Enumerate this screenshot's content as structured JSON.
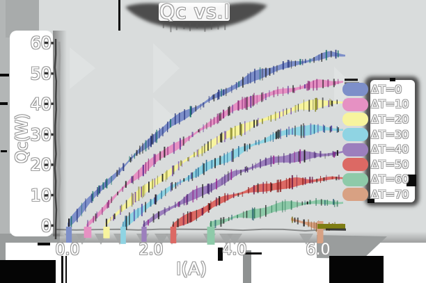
{
  "style": {
    "background": "#d9dcdc",
    "label_text_color": "#ffffff",
    "label_outline_color": "#9b9b9b",
    "shadow_color": "#4e4e4e"
  },
  "chart_data": {
    "type": "line",
    "title": "Qc vs.I",
    "xlabel": "I(A)",
    "ylabel": "Qc(W)",
    "x_ticks": [
      "0.0",
      "2.0",
      "4.0",
      "6.0"
    ],
    "x_tick_values": [
      0,
      2,
      4,
      6
    ],
    "y_ticks": [
      "0",
      "10",
      "20",
      "30",
      "40",
      "50",
      "60"
    ],
    "y_tick_values": [
      0,
      10,
      20,
      30,
      40,
      50,
      60
    ],
    "xlim": [
      -0.3,
      6.7
    ],
    "ylim": [
      0,
      62
    ],
    "grid": false,
    "legend_position": "right",
    "series": [
      {
        "name": "ΔT=0",
        "color": "#7d8fc9",
        "points": [
          [
            0,
            0
          ],
          [
            0.5,
            8
          ],
          [
            1,
            15
          ],
          [
            1.5,
            22
          ],
          [
            2,
            28
          ],
          [
            2.5,
            33.5
          ],
          [
            3,
            38
          ],
          [
            3.5,
            42.5
          ],
          [
            4,
            46
          ],
          [
            4.5,
            49
          ],
          [
            5,
            51.5
          ],
          [
            5.5,
            53.5
          ],
          [
            6,
            55.5
          ],
          [
            6.3,
            56.5
          ],
          [
            6.65,
            56
          ]
        ]
      },
      {
        "name": "ΔT=10",
        "color": "#e691c3",
        "points": [
          [
            0.45,
            0
          ],
          [
            1,
            8
          ],
          [
            1.5,
            14.5
          ],
          [
            2,
            20.5
          ],
          [
            2.5,
            25.5
          ],
          [
            3,
            30
          ],
          [
            3.5,
            34.5
          ],
          [
            4,
            38.5
          ],
          [
            4.5,
            41.5
          ],
          [
            5,
            44
          ],
          [
            5.5,
            45.5
          ],
          [
            6,
            46.5
          ],
          [
            6.6,
            47
          ]
        ]
      },
      {
        "name": "ΔT=20",
        "color": "#f7f49e",
        "points": [
          [
            0.9,
            0
          ],
          [
            1.5,
            8
          ],
          [
            2,
            13.5
          ],
          [
            2.5,
            18.5
          ],
          [
            3,
            23
          ],
          [
            3.5,
            27
          ],
          [
            4,
            31
          ],
          [
            4.5,
            34
          ],
          [
            5,
            36.5
          ],
          [
            5.5,
            38.5
          ],
          [
            6,
            40
          ],
          [
            6.6,
            40.5
          ]
        ]
      },
      {
        "name": "ΔT=30",
        "color": "#8fd4e3",
        "points": [
          [
            1.3,
            0
          ],
          [
            2,
            8
          ],
          [
            2.5,
            12.5
          ],
          [
            3,
            16.5
          ],
          [
            3.5,
            20.5
          ],
          [
            4,
            24
          ],
          [
            4.5,
            27
          ],
          [
            5,
            29.5
          ],
          [
            5.5,
            31
          ],
          [
            6,
            32
          ],
          [
            6.6,
            32
          ]
        ]
      },
      {
        "name": "ΔT=40",
        "color": "#9c7fbd",
        "points": [
          [
            1.8,
            0
          ],
          [
            2.5,
            6
          ],
          [
            3,
            10
          ],
          [
            3.5,
            13.5
          ],
          [
            4,
            17
          ],
          [
            4.5,
            19.5
          ],
          [
            5,
            21.5
          ],
          [
            5.5,
            23
          ],
          [
            6,
            23.5
          ],
          [
            6.6,
            24
          ]
        ]
      },
      {
        "name": "ΔT=50",
        "color": "#dc6964",
        "points": [
          [
            2.5,
            0
          ],
          [
            3,
            3.5
          ],
          [
            3.5,
            7
          ],
          [
            4,
            10
          ],
          [
            4.5,
            12
          ],
          [
            5,
            13.5
          ],
          [
            5.5,
            14.5
          ],
          [
            6,
            15
          ],
          [
            6.6,
            15.5
          ]
        ]
      },
      {
        "name": "ΔT=60",
        "color": "#8ecaa9",
        "points": [
          [
            3.4,
            0
          ],
          [
            4,
            3
          ],
          [
            4.5,
            4.5
          ],
          [
            5,
            6
          ],
          [
            5.5,
            7
          ],
          [
            6,
            7.5
          ],
          [
            6.6,
            8
          ]
        ]
      },
      {
        "name": "ΔT=70",
        "color": "#d8a183",
        "points": [
          [
            5.35,
            2.2
          ],
          [
            5.6,
            1.1
          ],
          [
            5.85,
            0.4
          ],
          [
            6.15,
            0.2
          ],
          [
            6.6,
            0.4
          ]
        ]
      }
    ]
  }
}
